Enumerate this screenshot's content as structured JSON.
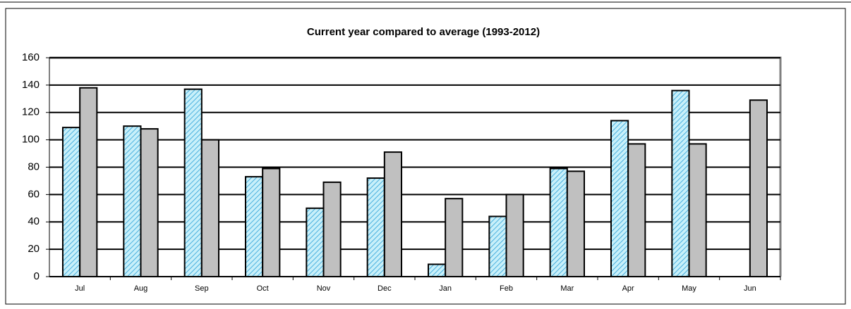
{
  "chart_data": {
    "type": "bar",
    "title": "Current year compared to average (1993-2012)",
    "categories": [
      "Jul",
      "Aug",
      "Sep",
      "Oct",
      "Nov",
      "Dec",
      "Jan",
      "Feb",
      "Mar",
      "Apr",
      "May",
      "Jun"
    ],
    "series": [
      {
        "color": "#2aa0d8",
        "hatch": true,
        "values": [
          109,
          110,
          137,
          73,
          50,
          72,
          9,
          44,
          79,
          114,
          136,
          null
        ]
      },
      {
        "color": "#c0c0c0",
        "hatch": false,
        "values": [
          138,
          108,
          100,
          79,
          69,
          91,
          57,
          60,
          77,
          97,
          97,
          129
        ]
      }
    ],
    "ylim": [
      0,
      160
    ],
    "yticks": [
      0,
      20,
      40,
      60,
      80,
      100,
      120,
      140,
      160
    ],
    "grid": true
  }
}
